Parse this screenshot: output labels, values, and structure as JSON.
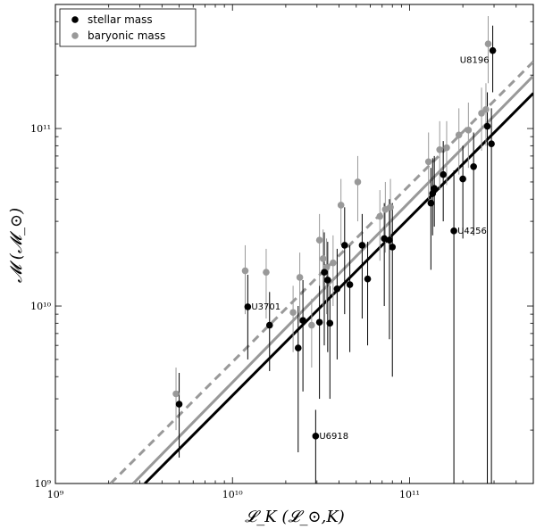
{
  "chart_data": {
    "type": "scatter",
    "title": "",
    "xlabel": "𝓛_K (𝓛_⊙,K)",
    "ylabel": "𝓜 (𝓜_⊙)",
    "x_scale": "log",
    "y_scale": "log",
    "xlim": [
      1000000000.0,
      500000000000.0
    ],
    "ylim": [
      1000000000.0,
      500000000000.0
    ],
    "x_ticks": [
      {
        "value": 1000000000.0,
        "label": "10⁹"
      },
      {
        "value": 10000000000.0,
        "label": "10¹⁰"
      },
      {
        "value": 100000000000.0,
        "label": "10¹¹"
      }
    ],
    "y_ticks": [
      {
        "value": 1000000000.0,
        "label": "10⁹"
      },
      {
        "value": 10000000000.0,
        "label": "10¹⁰"
      },
      {
        "value": 100000000000.0,
        "label": "10¹¹"
      }
    ],
    "legend_position": "top-left",
    "series": [
      {
        "name": "stellar mass",
        "color": "#000000",
        "points": [
          {
            "x": 5000000000.0,
            "y": 2800000000.0,
            "lo": 1400000000.0,
            "hi": 4200000000.0
          },
          {
            "x": 12200000000.0,
            "y": 9900000000.0,
            "lo": 5000000000.0,
            "hi": 15000000000.0
          },
          {
            "x": 16200000000.0,
            "y": 7800000000.0,
            "lo": 4300000000.0,
            "hi": 12000000000.0
          },
          {
            "x": 23500000000.0,
            "y": 5800000000.0,
            "lo": 1500000000.0,
            "hi": 10000000000.0
          },
          {
            "x": 25000000000.0,
            "y": 8300000000.0,
            "lo": 3300000000.0,
            "hi": 14000000000.0
          },
          {
            "x": 29500000000.0,
            "y": 1850000000.0,
            "lo": 1000000000.0,
            "hi": 2600000000.0
          },
          {
            "x": 31000000000.0,
            "y": 8100000000.0,
            "lo": 3000000000.0,
            "hi": 13000000000.0
          },
          {
            "x": 33000000000.0,
            "y": 15500000000.0,
            "lo": 6000000000.0,
            "hi": 26000000000.0
          },
          {
            "x": 34500000000.0,
            "y": 14000000000.0,
            "lo": 5500000000.0,
            "hi": 23000000000.0
          },
          {
            "x": 35500000000.0,
            "y": 8000000000.0,
            "lo": 3000000000.0,
            "hi": 13000000000.0
          },
          {
            "x": 39000000000.0,
            "y": 12500000000.0,
            "lo": 5000000000.0,
            "hi": 21000000000.0
          },
          {
            "x": 43000000000.0,
            "y": 22000000000.0,
            "lo": 9000000000.0,
            "hi": 36000000000.0
          },
          {
            "x": 46000000000.0,
            "y": 13200000000.0,
            "lo": 5500000000.0,
            "hi": 22000000000.0
          },
          {
            "x": 54000000000.0,
            "y": 22000000000.0,
            "lo": 8500000000.0,
            "hi": 33000000000.0
          },
          {
            "x": 58000000000.0,
            "y": 14200000000.0,
            "lo": 6000000000.0,
            "hi": 23000000000.0
          },
          {
            "x": 72000000000.0,
            "y": 24000000000.0,
            "lo": 10000000000.0,
            "hi": 38000000000.0
          },
          {
            "x": 77000000000.0,
            "y": 23500000000.0,
            "lo": 6500000000.0,
            "hi": 40000000000.0
          },
          {
            "x": 80000000000.0,
            "y": 21500000000.0,
            "lo": 4000000000.0,
            "hi": 38000000000.0
          },
          {
            "x": 132000000000.0,
            "y": 38000000000.0,
            "lo": 16000000000.0,
            "hi": 60000000000.0
          },
          {
            "x": 135000000000.0,
            "y": 43000000000.0,
            "lo": 25000000000.0,
            "hi": 68000000000.0
          },
          {
            "x": 138000000000.0,
            "y": 46000000000.0,
            "lo": 28000000000.0,
            "hi": 70000000000.0
          },
          {
            "x": 155000000000.0,
            "y": 55000000000.0,
            "lo": 30000000000.0,
            "hi": 85000000000.0
          },
          {
            "x": 178000000000.0,
            "y": 26500000000.0,
            "lo": 1000000000.0,
            "hi": 58000000000.0
          },
          {
            "x": 200000000000.0,
            "y": 52000000000.0,
            "lo": 24000000000.0,
            "hi": 80000000000.0
          },
          {
            "x": 230000000000.0,
            "y": 61000000000.0,
            "lo": 25000000000.0,
            "hi": 95000000000.0
          },
          {
            "x": 275000000000.0,
            "y": 103000000000.0,
            "lo": 1000000000.0,
            "hi": 160000000000.0
          },
          {
            "x": 290000000000.0,
            "y": 82000000000.0,
            "lo": 1000000000.0,
            "hi": 130000000000.0
          },
          {
            "x": 295000000000.0,
            "y": 275000000000.0,
            "lo": 160000000000.0,
            "hi": 380000000000.0
          }
        ]
      },
      {
        "name": "baryonic mass",
        "color": "#999999",
        "points": [
          {
            "x": 4800000000.0,
            "y": 3200000000.0,
            "lo": 2000000000.0,
            "hi": 4500000000.0
          },
          {
            "x": 11800000000.0,
            "y": 15800000000.0,
            "lo": 9000000000.0,
            "hi": 22000000000.0
          },
          {
            "x": 15500000000.0,
            "y": 15500000000.0,
            "lo": 8500000000.0,
            "hi": 21000000000.0
          },
          {
            "x": 22000000000.0,
            "y": 9200000000.0,
            "lo": 5500000000.0,
            "hi": 13000000000.0
          },
          {
            "x": 24000000000.0,
            "y": 14500000000.0,
            "lo": 8000000000.0,
            "hi": 20000000000.0
          },
          {
            "x": 28000000000.0,
            "y": 7800000000.0,
            "lo": 4500000000.0,
            "hi": 11000000000.0
          },
          {
            "x": 31000000000.0,
            "y": 23500000000.0,
            "lo": 13000000000.0,
            "hi": 33000000000.0
          },
          {
            "x": 32500000000.0,
            "y": 18500000000.0,
            "lo": 10000000000.0,
            "hi": 27000000000.0
          },
          {
            "x": 34000000000.0,
            "y": 16500000000.0,
            "lo": 9000000000.0,
            "hi": 24000000000.0
          },
          {
            "x": 37000000000.0,
            "y": 17500000000.0,
            "lo": 10000000000.0,
            "hi": 25000000000.0
          },
          {
            "x": 41000000000.0,
            "y": 37000000000.0,
            "lo": 22000000000.0,
            "hi": 52000000000.0
          },
          {
            "x": 51000000000.0,
            "y": 50000000000.0,
            "lo": 30000000000.0,
            "hi": 70000000000.0
          },
          {
            "x": 68000000000.0,
            "y": 32000000000.0,
            "lo": 18000000000.0,
            "hi": 45000000000.0
          },
          {
            "x": 73000000000.0,
            "y": 35000000000.0,
            "lo": 20000000000.0,
            "hi": 50000000000.0
          },
          {
            "x": 78000000000.0,
            "y": 36000000000.0,
            "lo": 21000000000.0,
            "hi": 52000000000.0
          },
          {
            "x": 128000000000.0,
            "y": 65000000000.0,
            "lo": 40000000000.0,
            "hi": 95000000000.0
          },
          {
            "x": 148000000000.0,
            "y": 76000000000.0,
            "lo": 45000000000.0,
            "hi": 110000000000.0
          },
          {
            "x": 162000000000.0,
            "y": 78000000000.0,
            "lo": 48000000000.0,
            "hi": 110000000000.0
          },
          {
            "x": 190000000000.0,
            "y": 92000000000.0,
            "lo": 55000000000.0,
            "hi": 130000000000.0
          },
          {
            "x": 215000000000.0,
            "y": 98000000000.0,
            "lo": 60000000000.0,
            "hi": 140000000000.0
          },
          {
            "x": 255000000000.0,
            "y": 122000000000.0,
            "lo": 75000000000.0,
            "hi": 170000000000.0
          },
          {
            "x": 270000000000.0,
            "y": 128000000000.0,
            "lo": 80000000000.0,
            "hi": 180000000000.0
          },
          {
            "x": 278000000000.0,
            "y": 300000000000.0,
            "lo": 180000000000.0,
            "hi": 430000000000.0
          }
        ]
      }
    ],
    "fit_lines": [
      {
        "name": "stellar fit",
        "color": "#000000",
        "dash": "solid",
        "from": [
          3200000000.0,
          1000000000.0
        ],
        "to": [
          500000000000.0,
          158000000000.0
        ]
      },
      {
        "name": "baryonic fit",
        "color": "#999999",
        "dash": "solid",
        "from": [
          2750000000.0,
          1000000000.0
        ],
        "to": [
          500000000000.0,
          198000000000.0
        ]
      },
      {
        "name": "baryonic fit alt",
        "color": "#999999",
        "dash": "dashed",
        "from": [
          2050000000.0,
          1000000000.0
        ],
        "to": [
          500000000000.0,
          238000000000.0
        ]
      }
    ],
    "annotations": [
      {
        "text": "U8196",
        "x": 295000000000.0,
        "y": 275000000000.0,
        "anchor": "below-left"
      },
      {
        "text": "U4256",
        "x": 178000000000.0,
        "y": 26500000000.0,
        "anchor": "right"
      },
      {
        "text": "U3701",
        "x": 12200000000.0,
        "y": 9900000000.0,
        "anchor": "right"
      },
      {
        "text": "U6918",
        "x": 29500000000.0,
        "y": 1850000000.0,
        "anchor": "right"
      }
    ]
  }
}
